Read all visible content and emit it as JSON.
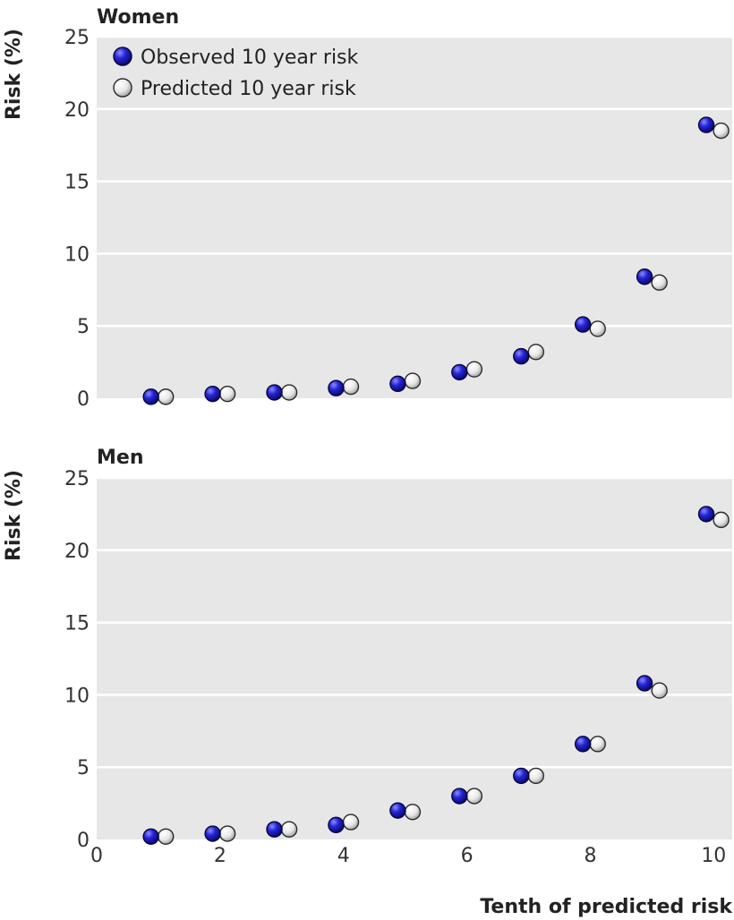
{
  "chart_data": [
    {
      "type": "scatter",
      "title": "Women",
      "xlabel": "Tenth of predicted risk",
      "ylabel": "Risk (%)",
      "xlim": [
        0,
        10.3
      ],
      "ylim": [
        0,
        25
      ],
      "yticks": [
        0,
        5,
        10,
        15,
        20,
        25
      ],
      "xticks": [],
      "grid": true,
      "legend_position": "top-left",
      "series": [
        {
          "name": "Observed 10 year risk",
          "marker": "blue",
          "x": [
            1,
            2,
            3,
            4,
            5,
            6,
            7,
            8,
            9,
            10
          ],
          "values": [
            0.1,
            0.3,
            0.4,
            0.7,
            1.0,
            1.8,
            2.9,
            5.1,
            8.4,
            18.9
          ]
        },
        {
          "name": "Predicted 10 year risk",
          "marker": "white",
          "x": [
            1,
            2,
            3,
            4,
            5,
            6,
            7,
            8,
            9,
            10
          ],
          "values": [
            0.1,
            0.3,
            0.4,
            0.8,
            1.2,
            2.0,
            3.2,
            4.8,
            8.0,
            18.5
          ]
        }
      ]
    },
    {
      "type": "scatter",
      "title": "Men",
      "xlabel": "Tenth of predicted risk",
      "ylabel": "Risk (%)",
      "xlim": [
        0,
        10.3
      ],
      "ylim": [
        0,
        25
      ],
      "yticks": [
        0,
        5,
        10,
        15,
        20,
        25
      ],
      "xticks": [
        0,
        2,
        4,
        6,
        8,
        10
      ],
      "grid": true,
      "series": [
        {
          "name": "Observed 10 year risk",
          "marker": "blue",
          "x": [
            1,
            2,
            3,
            4,
            5,
            6,
            7,
            8,
            9,
            10
          ],
          "values": [
            0.2,
            0.4,
            0.7,
            1.0,
            2.0,
            3.0,
            4.4,
            6.6,
            10.8,
            22.5
          ]
        },
        {
          "name": "Predicted 10 year risk",
          "marker": "white",
          "x": [
            1,
            2,
            3,
            4,
            5,
            6,
            7,
            8,
            9,
            10
          ],
          "values": [
            0.2,
            0.4,
            0.7,
            1.2,
            1.9,
            3.0,
            4.4,
            6.6,
            10.3,
            22.1
          ]
        }
      ]
    }
  ],
  "colors": {
    "panel_background": "#e7e7e8",
    "gridline": "#ffffff",
    "observed": "#1c1cc8",
    "predicted": "#f0f0f0"
  }
}
